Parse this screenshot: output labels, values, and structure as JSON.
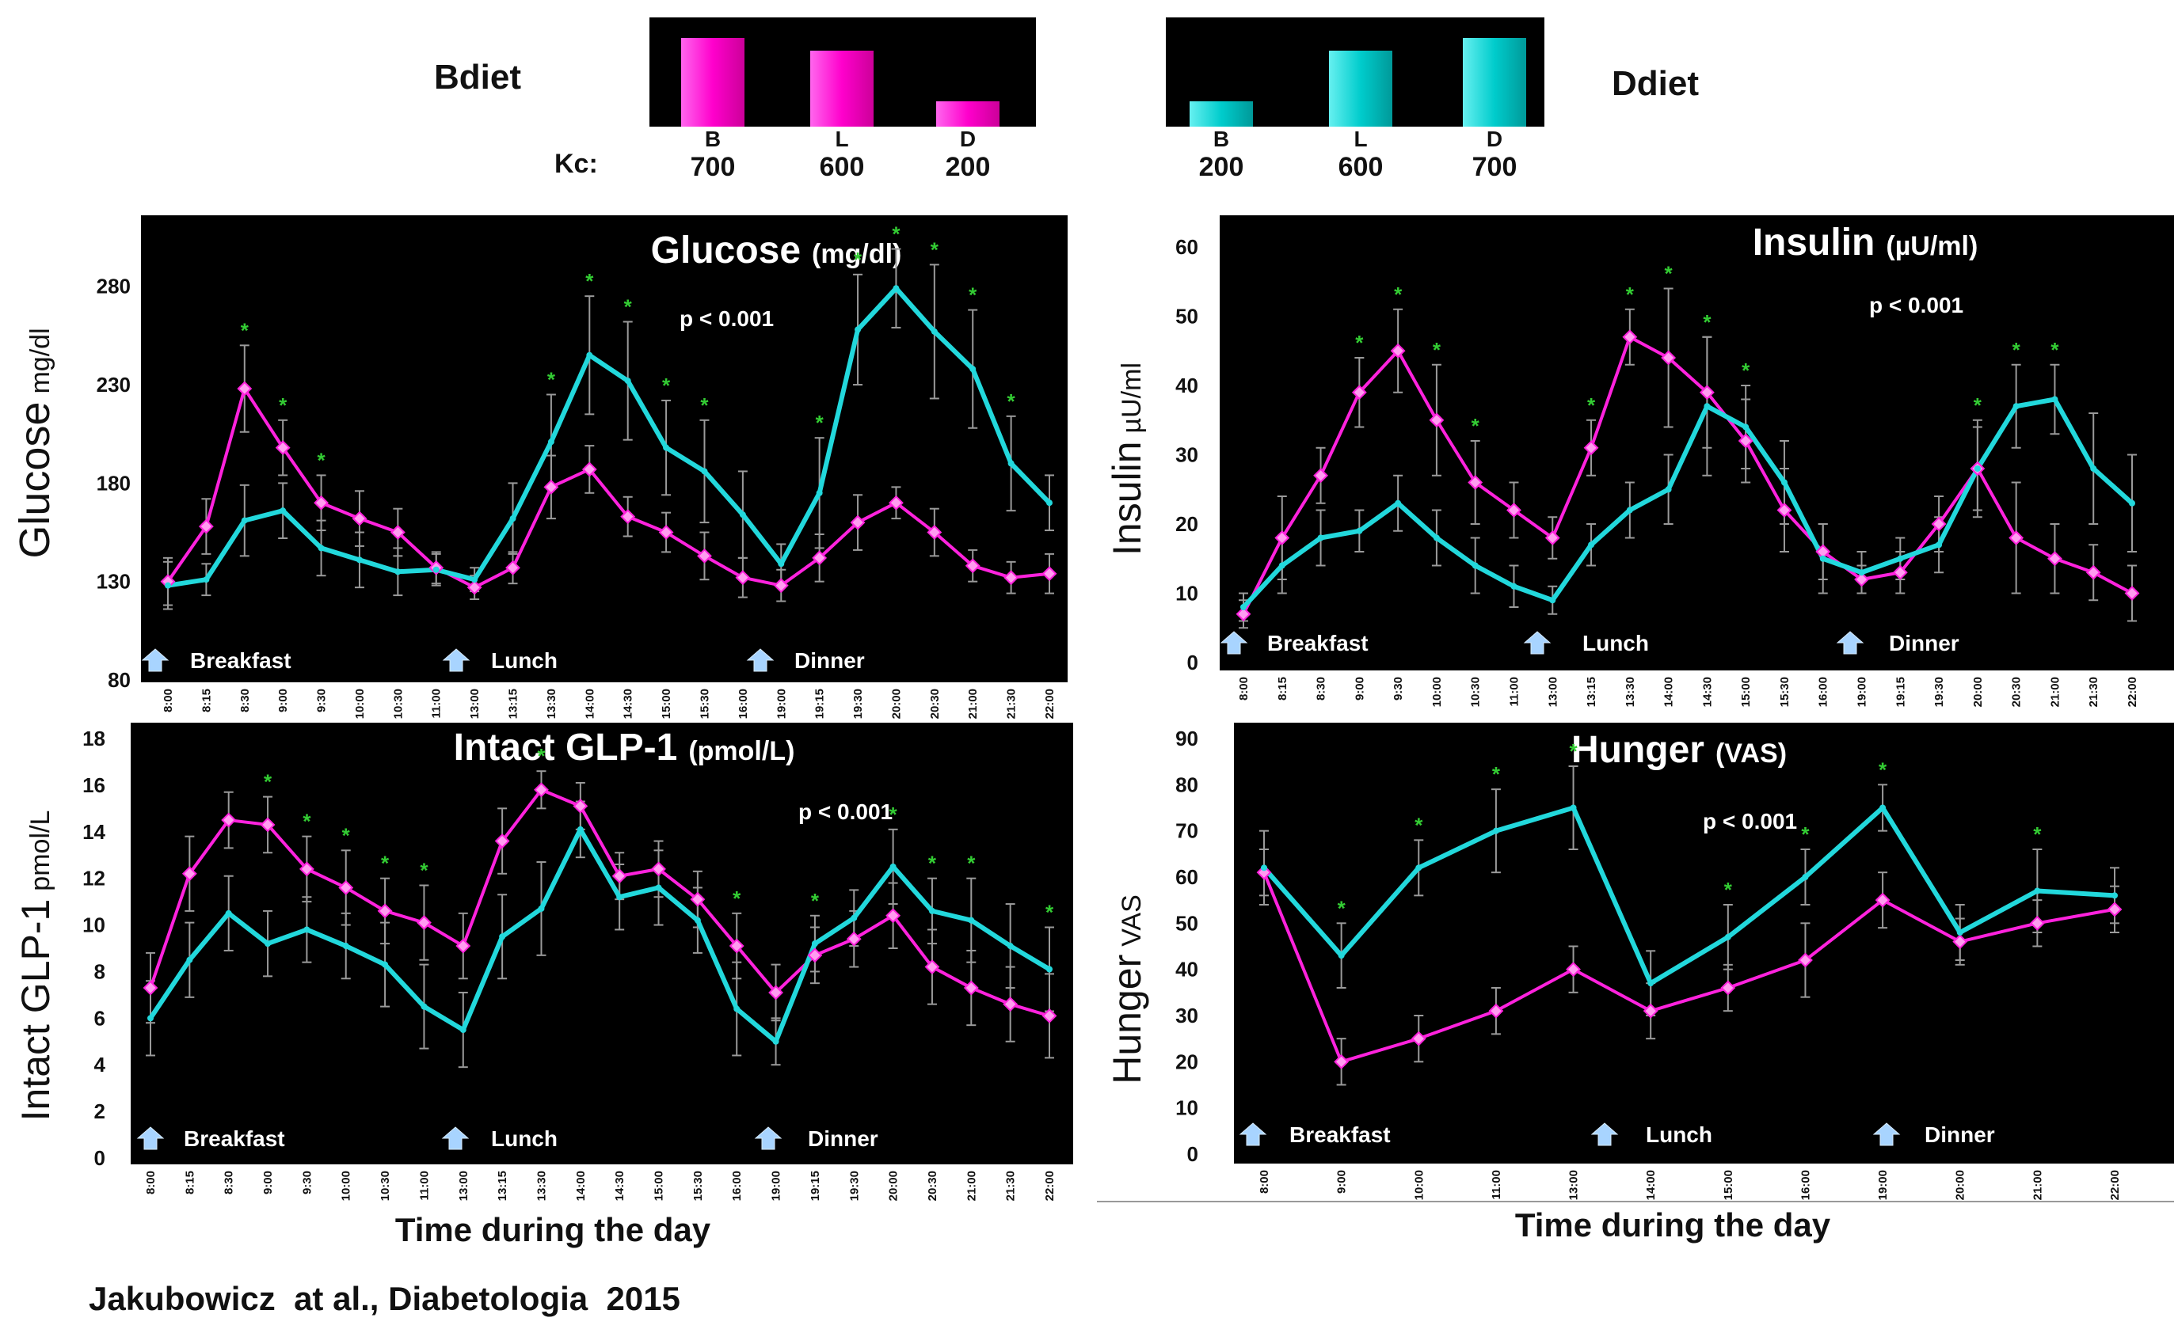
{
  "colors": {
    "bdiet": "#ff22dd",
    "ddiet": "#22d8dc",
    "panel_bg": "#000000",
    "star": "#33cc33",
    "errbar": "#9a9a9a"
  },
  "header": {
    "bdiet_label": "Bdiet",
    "ddiet_label": "Ddiet",
    "kc_label": "Kc:",
    "bdiet_meals": {
      "categories": [
        "B",
        "L",
        "D"
      ],
      "values": [
        700,
        600,
        200
      ],
      "value_labels": [
        "700",
        "600",
        "200"
      ]
    },
    "ddiet_meals": {
      "categories": [
        "B",
        "L",
        "D"
      ],
      "values": [
        200,
        600,
        700
      ],
      "value_labels": [
        "200",
        "600",
        "700"
      ]
    }
  },
  "footer": {
    "xlabel_left": "Time during the day",
    "xlabel_right": "Time during the day",
    "citation": "Jakubowicz  at al., Diabetologia  2015"
  },
  "chart_data": [
    {
      "id": "glucose",
      "type": "line",
      "title": "Glucose",
      "title_unit": "(mg/dl)",
      "ylabel": "Glucose",
      "ylabel_unit": "mg/dl",
      "pvalue": "p < 0.001",
      "ylim": [
        80,
        300
      ],
      "yticks": [
        80,
        130,
        180,
        230,
        280
      ],
      "x": [
        "8:00",
        "8:15",
        "8:30",
        "9:00",
        "9:30",
        "10:00",
        "10:30",
        "11:00",
        "13:00",
        "13:15",
        "13:30",
        "14:00",
        "14:30",
        "15:00",
        "15:30",
        "16:00",
        "19:00",
        "19:15",
        "19:30",
        "20:00",
        "20:30",
        "21:00",
        "21:30",
        "22:00"
      ],
      "meals": [
        {
          "label": "Breakfast",
          "at": 0
        },
        {
          "label": "Lunch",
          "at": 8
        },
        {
          "label": "Dinner",
          "at": 16
        }
      ],
      "series": [
        {
          "values": [
            130,
            158,
            228,
            198,
            170,
            162,
            155,
            137,
            127,
            137,
            178,
            187,
            163,
            155,
            143,
            132,
            128,
            142,
            160,
            170,
            155,
            138,
            132,
            134
          ],
          "err": [
            12,
            14,
            22,
            14,
            14,
            14,
            12,
            8,
            6,
            8,
            16,
            12,
            10,
            10,
            12,
            10,
            8,
            12,
            14,
            8,
            12,
            8,
            8,
            10
          ]
        },
        {
          "values": [
            128,
            131,
            161,
            166,
            147,
            141,
            135,
            136,
            131,
            162,
            201,
            245,
            232,
            198,
            186,
            164,
            139,
            175,
            258,
            279,
            257,
            238,
            190,
            170
          ],
          "err": [
            12,
            8,
            18,
            14,
            14,
            14,
            12,
            8,
            6,
            18,
            24,
            30,
            30,
            24,
            26,
            22,
            10,
            28,
            28,
            20,
            34,
            30,
            24,
            14
          ]
        }
      ],
      "stars": [
        2,
        3,
        4,
        10,
        11,
        12,
        13,
        14,
        17,
        18,
        19,
        20,
        21,
        22
      ]
    },
    {
      "id": "insulin",
      "type": "line",
      "title": "Insulin",
      "title_unit": "(µU/ml)",
      "ylabel": "Insulin",
      "ylabel_unit": "µU/ml",
      "pvalue": "p < 0.001",
      "ylim": [
        0,
        60
      ],
      "yticks": [
        0,
        10,
        20,
        30,
        40,
        50,
        60
      ],
      "x": [
        "8:00",
        "8:15",
        "8:30",
        "9:00",
        "9:30",
        "10:00",
        "10:30",
        "11:00",
        "13:00",
        "13:15",
        "13:30",
        "14:00",
        "14:30",
        "15:00",
        "15:30",
        "16:00",
        "19:00",
        "19:15",
        "19:30",
        "20:00",
        "20:30",
        "21:00",
        "21:30",
        "22:00"
      ],
      "meals": [
        {
          "label": "Breakfast",
          "at": 0
        },
        {
          "label": "Lunch",
          "at": 8
        },
        {
          "label": "Dinner",
          "at": 16
        }
      ],
      "series": [
        {
          "values": [
            7,
            18,
            27,
            39,
            45,
            35,
            26,
            22,
            18,
            31,
            47,
            44,
            39,
            32,
            22,
            16,
            12,
            13,
            20,
            28,
            18,
            15,
            13,
            10
          ],
          "err": [
            2,
            6,
            4,
            5,
            6,
            8,
            6,
            4,
            3,
            4,
            4,
            10,
            8,
            6,
            6,
            4,
            2,
            3,
            4,
            6,
            8,
            5,
            4,
            4
          ]
        },
        {
          "values": [
            8,
            14,
            18,
            19,
            23,
            18,
            14,
            11,
            9,
            17,
            22,
            25,
            37,
            34,
            26,
            15,
            13,
            15,
            17,
            28,
            37,
            38,
            28,
            23
          ],
          "err": [
            2,
            4,
            4,
            3,
            4,
            4,
            4,
            3,
            2,
            3,
            4,
            5,
            10,
            6,
            6,
            5,
            3,
            3,
            4,
            7,
            6,
            5,
            8,
            7
          ]
        }
      ],
      "stars": [
        3,
        4,
        5,
        6,
        9,
        10,
        11,
        12,
        13,
        19,
        20,
        21
      ]
    },
    {
      "id": "glp1",
      "type": "line",
      "title": "Intact GLP-1",
      "title_unit": "(pmol/L)",
      "ylabel": "Intact GLP-1",
      "ylabel_unit": "pmol/L",
      "pvalue": "p < 0.001",
      "ylim": [
        0,
        18
      ],
      "yticks": [
        0,
        2,
        4,
        6,
        8,
        10,
        12,
        14,
        16,
        18
      ],
      "x": [
        "8:00",
        "8:15",
        "8:30",
        "9:00",
        "9:30",
        "10:00",
        "10:30",
        "11:00",
        "13:00",
        "13:15",
        "13:30",
        "14:00",
        "14:30",
        "15:00",
        "15:30",
        "16:00",
        "19:00",
        "19:15",
        "19:30",
        "20:00",
        "20:30",
        "21:00",
        "21:30",
        "22:00"
      ],
      "meals": [
        {
          "label": "Breakfast",
          "at": 0
        },
        {
          "label": "Lunch",
          "at": 8
        },
        {
          "label": "Dinner",
          "at": 16
        }
      ],
      "series": [
        {
          "values": [
            7.3,
            12.2,
            14.5,
            14.3,
            12.4,
            11.6,
            10.6,
            10.1,
            9.1,
            13.6,
            15.8,
            15.1,
            12.1,
            12.4,
            11.1,
            9.1,
            7.1,
            8.7,
            9.4,
            10.4,
            8.2,
            7.3,
            6.6,
            6.1
          ],
          "err": [
            1.5,
            1.6,
            1.2,
            1.2,
            1.4,
            1.6,
            1.4,
            1.6,
            1.4,
            1.4,
            0.8,
            1.0,
            1.0,
            1.2,
            1.2,
            1.4,
            1.2,
            1.2,
            1.2,
            1.4,
            1.6,
            1.6,
            1.6,
            1.8
          ]
        },
        {
          "values": [
            6.0,
            8.5,
            10.5,
            9.2,
            9.8,
            9.1,
            8.3,
            6.5,
            5.5,
            9.5,
            10.7,
            14.1,
            11.2,
            11.6,
            10.2,
            6.4,
            5.0,
            9.2,
            10.3,
            12.5,
            10.6,
            10.2,
            9.1,
            8.1
          ],
          "err": [
            1.6,
            1.6,
            1.6,
            1.4,
            1.4,
            1.4,
            1.8,
            1.8,
            1.6,
            1.8,
            2.0,
            1.2,
            1.4,
            1.6,
            1.4,
            2.0,
            1.0,
            1.2,
            1.2,
            1.6,
            1.4,
            1.8,
            1.8,
            1.8
          ]
        }
      ],
      "stars": [
        3,
        4,
        5,
        6,
        7,
        10,
        15,
        17,
        19,
        20,
        21,
        23
      ]
    },
    {
      "id": "hunger",
      "type": "line",
      "title": "Hunger",
      "title_unit": "(VAS)",
      "ylabel": "Hunger",
      "ylabel_unit": "VAS",
      "pvalue": "p < 0.001",
      "ylim": [
        0,
        90
      ],
      "yticks": [
        0,
        10,
        20,
        30,
        40,
        50,
        60,
        70,
        80,
        90
      ],
      "x": [
        "8:00",
        "9:00",
        "10:00",
        "11:00",
        "13:00",
        "14:00",
        "15:00",
        "16:00",
        "19:00",
        "20:00",
        "21:00",
        "22:00"
      ],
      "meals": [
        {
          "label": "Breakfast",
          "at": 0
        },
        {
          "label": "Lunch",
          "at": 5
        },
        {
          "label": "Dinner",
          "at": 8
        }
      ],
      "series": [
        {
          "values": [
            61,
            20,
            25,
            31,
            40,
            31,
            36,
            42,
            55,
            46,
            50,
            53
          ],
          "err": [
            5,
            5,
            5,
            5,
            5,
            6,
            5,
            8,
            6,
            5,
            5,
            5
          ]
        },
        {
          "values": [
            62,
            43,
            62,
            70,
            75,
            37,
            47,
            60,
            75,
            48,
            57,
            56
          ],
          "err": [
            8,
            7,
            6,
            9,
            9,
            7,
            7,
            6,
            5,
            6,
            9,
            6
          ]
        }
      ],
      "stars": [
        1,
        2,
        3,
        4,
        6,
        7,
        8,
        10
      ]
    }
  ]
}
